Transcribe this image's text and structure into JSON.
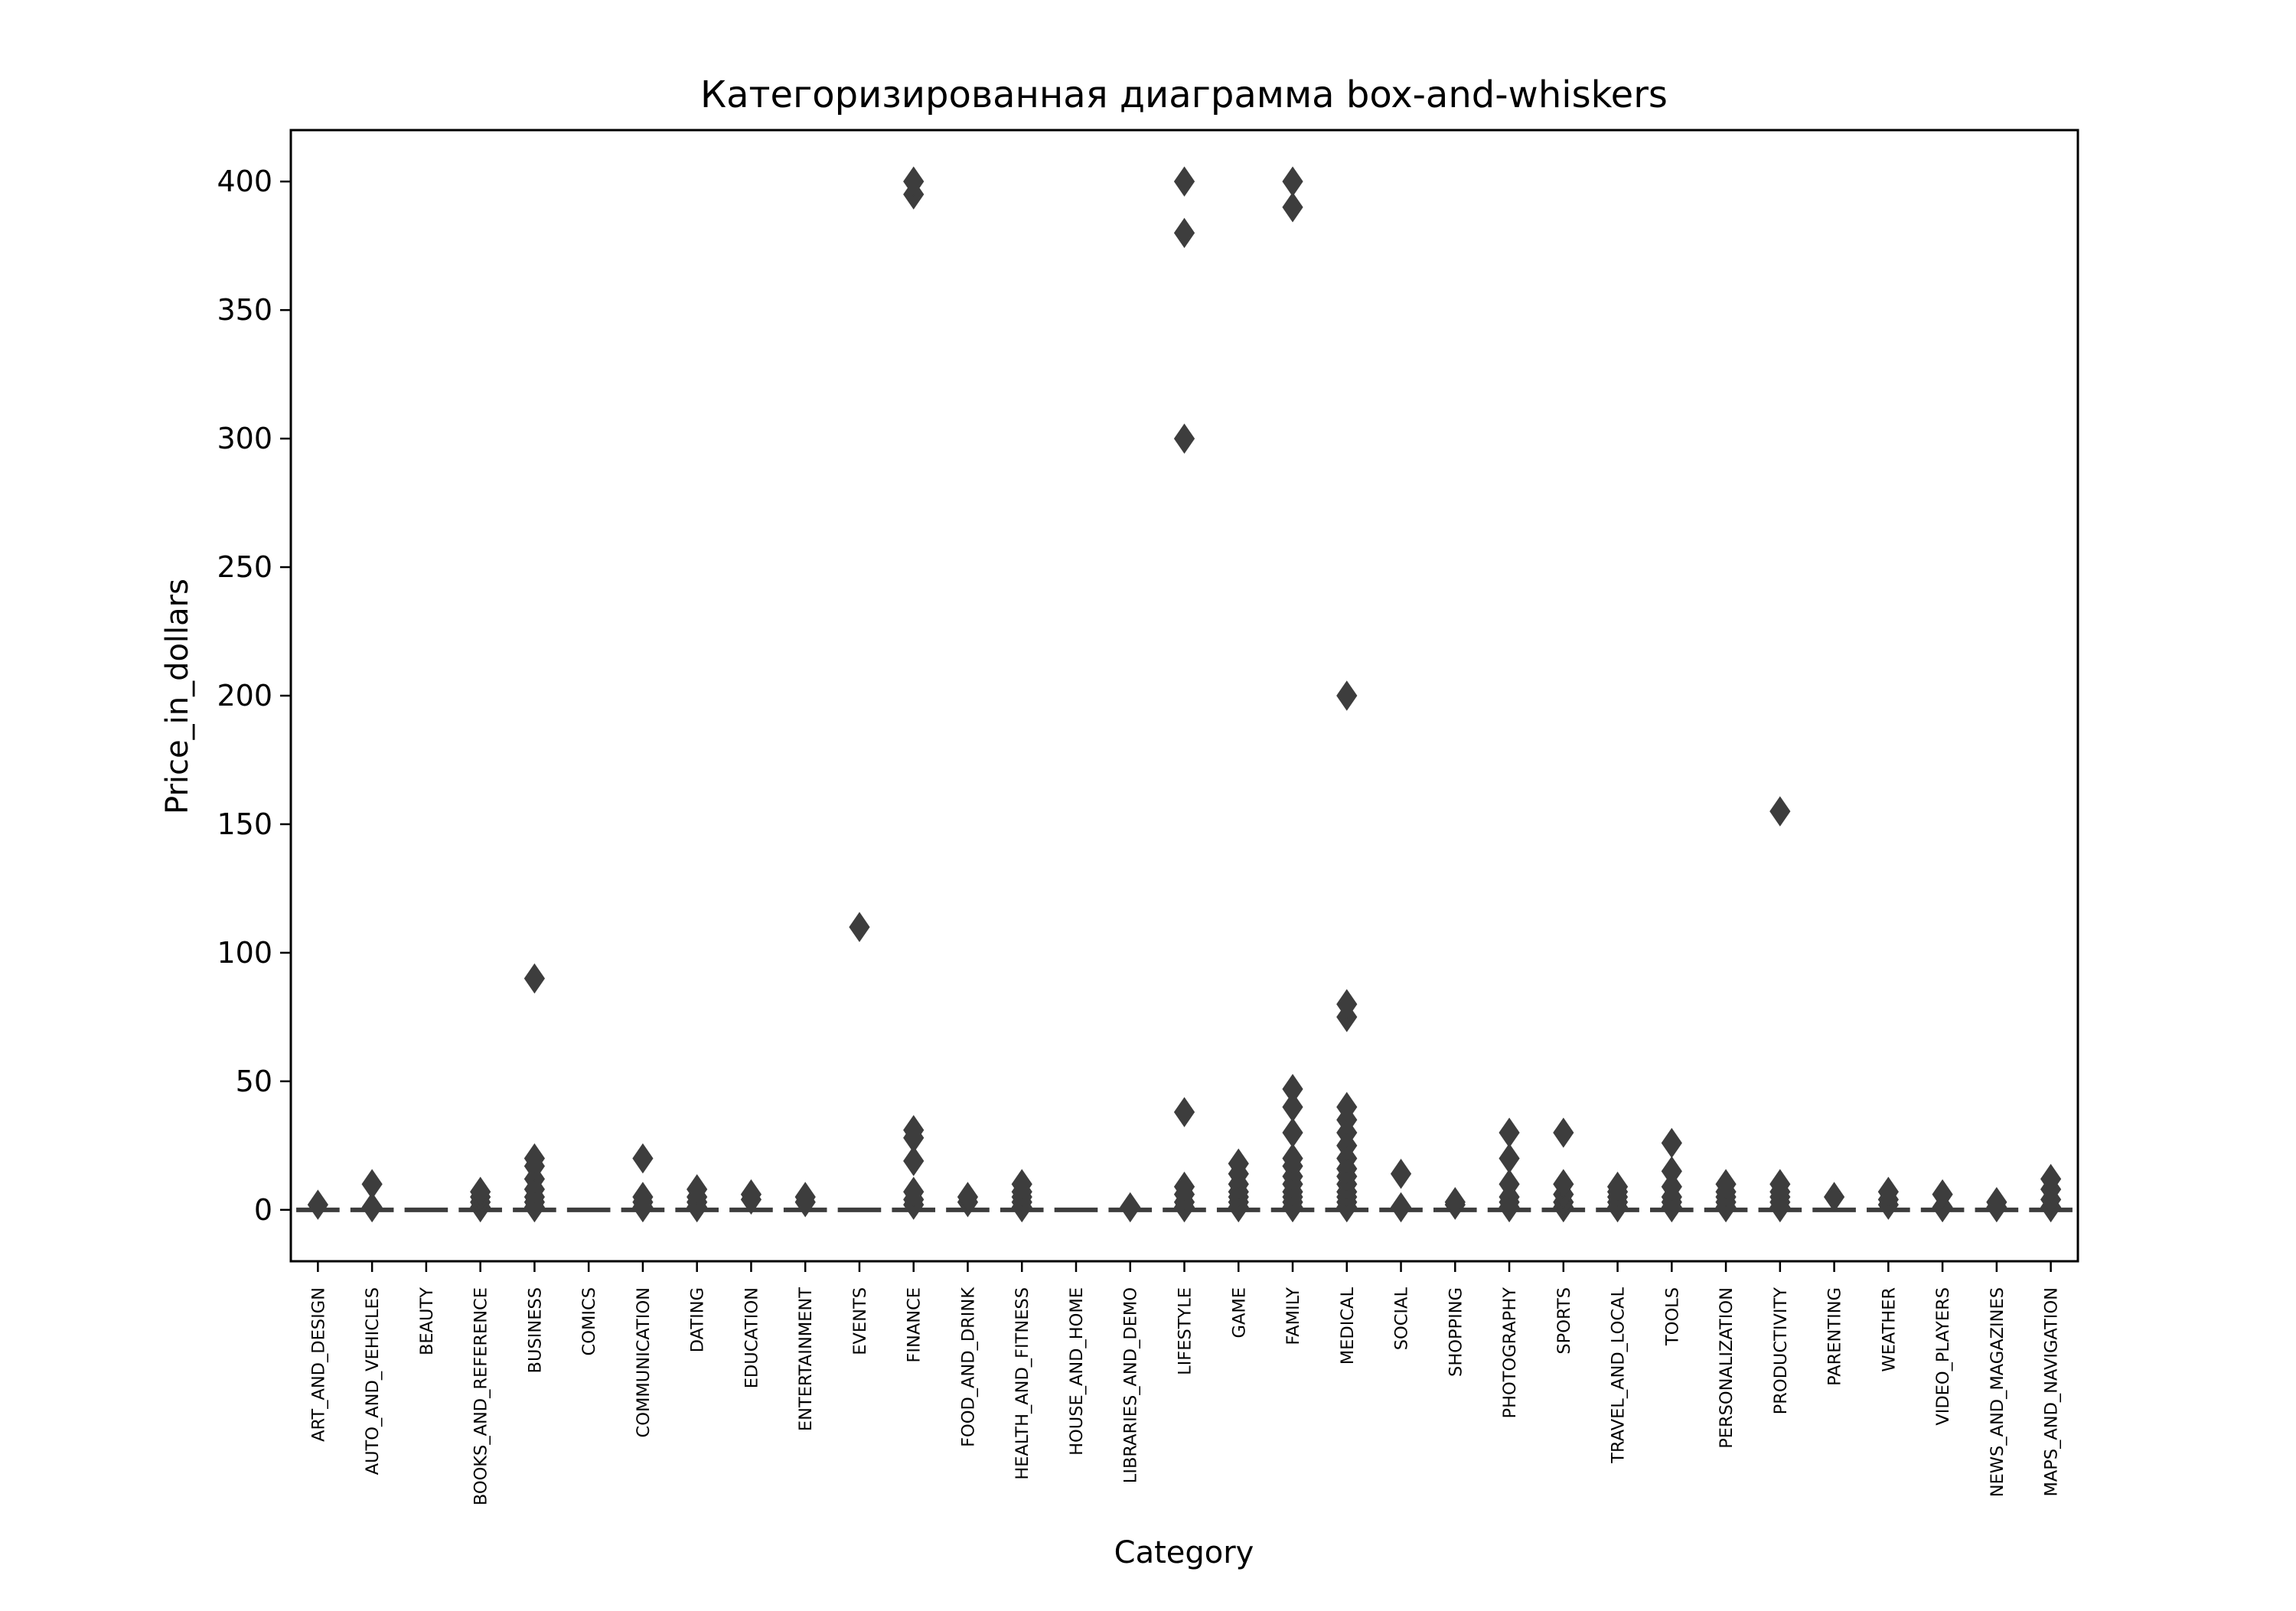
{
  "chart_data": {
    "type": "box",
    "title": "Категоризированная диаграмма box-and-whiskers",
    "xlabel": "Category",
    "ylabel": "Price_in_dollars",
    "ylim": [
      -20,
      420
    ],
    "yticks": [
      0,
      50,
      100,
      150,
      200,
      250,
      300,
      350,
      400
    ],
    "grid": false,
    "legend": "none",
    "colors": {
      "box": "#3d3d3d",
      "frame": "#000000",
      "background": "#ffffff"
    },
    "categories": [
      "ART_AND_DESIGN",
      "AUTO_AND_VEHICLES",
      "BEAUTY",
      "BOOKS_AND_REFERENCE",
      "BUSINESS",
      "COMICS",
      "COMMUNICATION",
      "DATING",
      "EDUCATION",
      "ENTERTAINMENT",
      "EVENTS",
      "FINANCE",
      "FOOD_AND_DRINK",
      "HEALTH_AND_FITNESS",
      "HOUSE_AND_HOME",
      "LIBRARIES_AND_DEMO",
      "LIFESTYLE",
      "GAME",
      "FAMILY",
      "MEDICAL",
      "SOCIAL",
      "SHOPPING",
      "PHOTOGRAPHY",
      "SPORTS",
      "TRAVEL_AND_LOCAL",
      "TOOLS",
      "PERSONALIZATION",
      "PRODUCTIVITY",
      "PARENTING",
      "WEATHER",
      "VIDEO_PLAYERS",
      "NEWS_AND_MAGAZINES",
      "MAPS_AND_NAVIGATION"
    ],
    "median": [
      0,
      0,
      0,
      0,
      0,
      0,
      0,
      0,
      0,
      0,
      0,
      0,
      0,
      0,
      0,
      0,
      0,
      0,
      0,
      0,
      0,
      0,
      0,
      0,
      0,
      0,
      0,
      0,
      0,
      0,
      0,
      0,
      0
    ],
    "outliers": [
      [
        2
      ],
      [
        1,
        10
      ],
      [],
      [
        1,
        3,
        5,
        7
      ],
      [
        1,
        3,
        5,
        8,
        12,
        17,
        20,
        90
      ],
      [],
      [
        1,
        3,
        5,
        20
      ],
      [
        1,
        3,
        5,
        8
      ],
      [
        4,
        6
      ],
      [
        3,
        5
      ],
      [
        110
      ],
      [
        2,
        4,
        7,
        19,
        28,
        31,
        395,
        400
      ],
      [
        3,
        5
      ],
      [
        1,
        3,
        5,
        7,
        10
      ],
      [],
      [
        1
      ],
      [
        1,
        3,
        6,
        9,
        38,
        300,
        380,
        400
      ],
      [
        1,
        3,
        5,
        7,
        10,
        14,
        18
      ],
      [
        1,
        3,
        5,
        7,
        10,
        13,
        17,
        20,
        30,
        40,
        47,
        390,
        400
      ],
      [
        1,
        3,
        5,
        7,
        10,
        13,
        16,
        20,
        25,
        30,
        35,
        40,
        75,
        80,
        200
      ],
      [
        1,
        14
      ],
      [
        2,
        3
      ],
      [
        1,
        3,
        5,
        10,
        20,
        30
      ],
      [
        1,
        3,
        6,
        10,
        30
      ],
      [
        1,
        3,
        5,
        7,
        9
      ],
      [
        1,
        3,
        5,
        9,
        15,
        26
      ],
      [
        1,
        3,
        5,
        7,
        10
      ],
      [
        1,
        3,
        5,
        7,
        10,
        155
      ],
      [
        5
      ],
      [
        2,
        4,
        7
      ],
      [
        1,
        6
      ],
      [
        1,
        3
      ],
      [
        1,
        4,
        8,
        12
      ]
    ]
  }
}
